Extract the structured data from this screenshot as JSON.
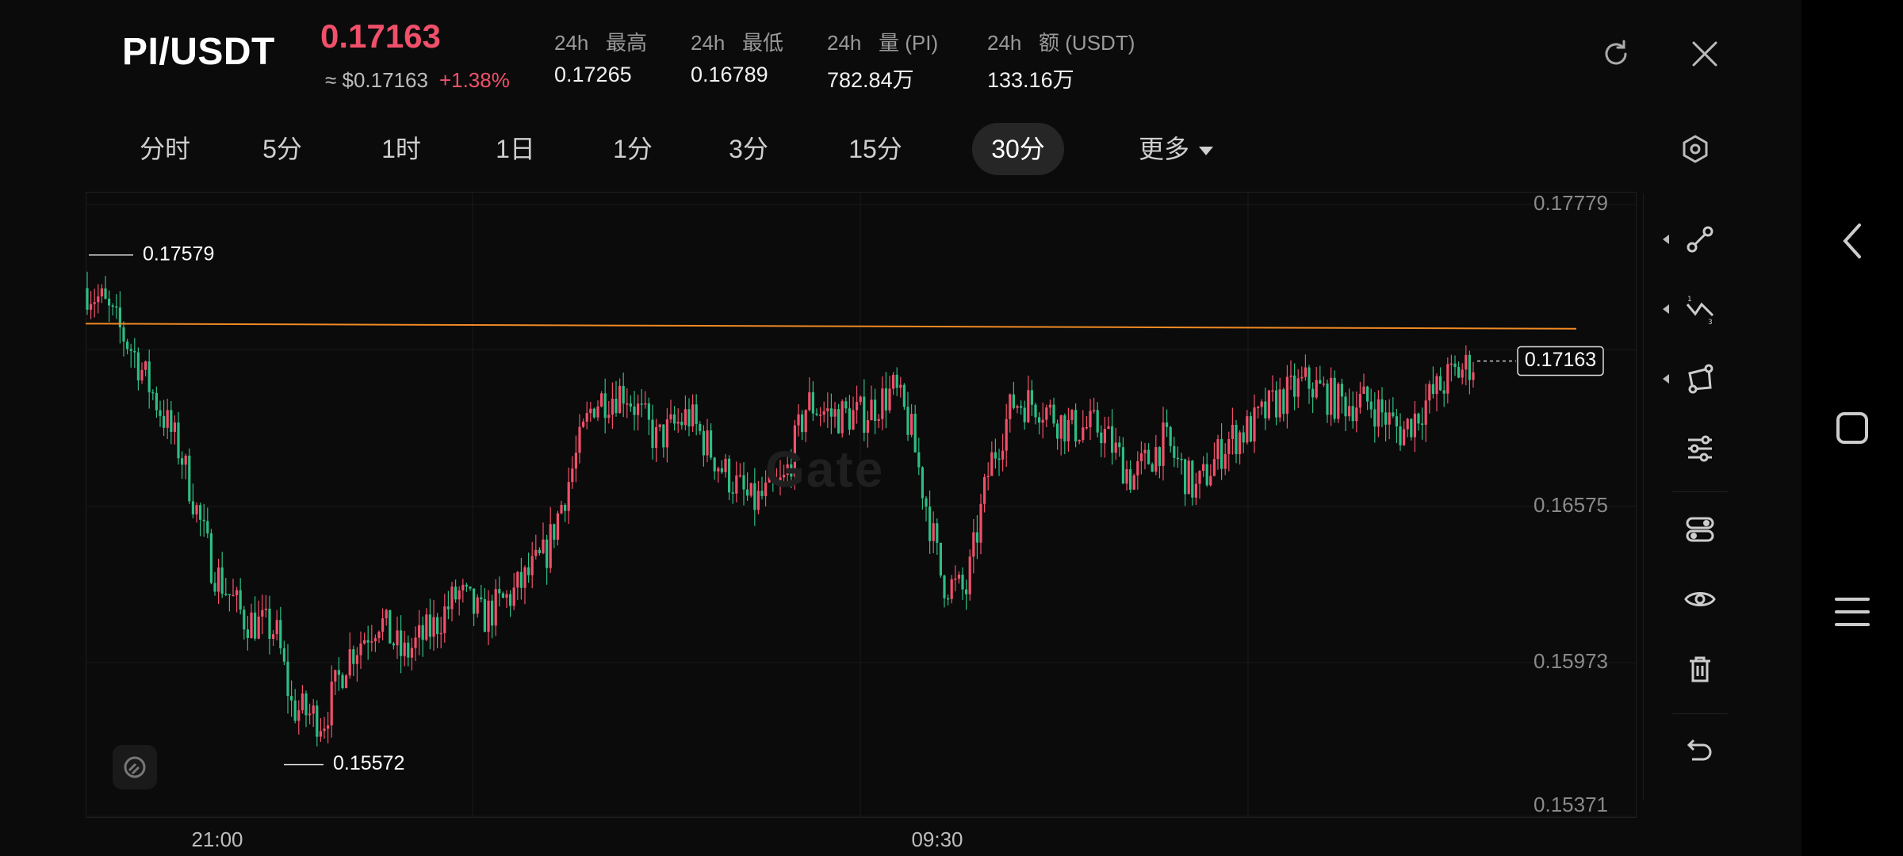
{
  "header": {
    "pair": "PI/USDT",
    "price": "0.17163",
    "approx": "≈ $0.17163",
    "change": "+1.38%",
    "stats": [
      {
        "label": "24h   最高",
        "value": "0.17265"
      },
      {
        "label": "24h   最低",
        "value": "0.16789"
      },
      {
        "label": "24h   量 (PI)",
        "value": "782.84万"
      },
      {
        "label": "24h   额 (USDT)",
        "value": "133.16万"
      }
    ],
    "icons": {
      "refresh": "refresh-icon",
      "close": "close-icon"
    }
  },
  "tabs": [
    {
      "label": "分时"
    },
    {
      "label": "5分"
    },
    {
      "label": "1时"
    },
    {
      "label": "1日"
    },
    {
      "label": "1分"
    },
    {
      "label": "3分"
    },
    {
      "label": "15分"
    },
    {
      "label": "30分",
      "active": true
    },
    {
      "label": "更多"
    }
  ],
  "chart_data": {
    "type": "candlestick",
    "interval": "30分",
    "y_ticks": [
      "0.17779",
      "0.16575",
      "0.15973",
      "0.15371"
    ],
    "ylim": [
      0.15371,
      0.17779
    ],
    "x_ticks": [
      "21:00",
      "09:30"
    ],
    "high_marker": "0.17579",
    "low_marker": "0.15572",
    "last_price_label": "0.17163",
    "last_price": 0.17163,
    "trend_line": [
      0.1731,
      0.1729
    ],
    "grid": true,
    "watermark": "Gate",
    "colors": {
      "up": "#f0506a",
      "down": "#2ebd85",
      "trend": "#f08a24"
    }
  },
  "toolbar": [
    "connect-nodes-icon",
    "fib-line-icon",
    "shape-icon",
    "settings-sliders-icon",
    "toggle-icon",
    "eye-icon",
    "trash-icon",
    "undo-icon"
  ],
  "nav": [
    "back-icon",
    "home-icon",
    "menu-icon"
  ]
}
